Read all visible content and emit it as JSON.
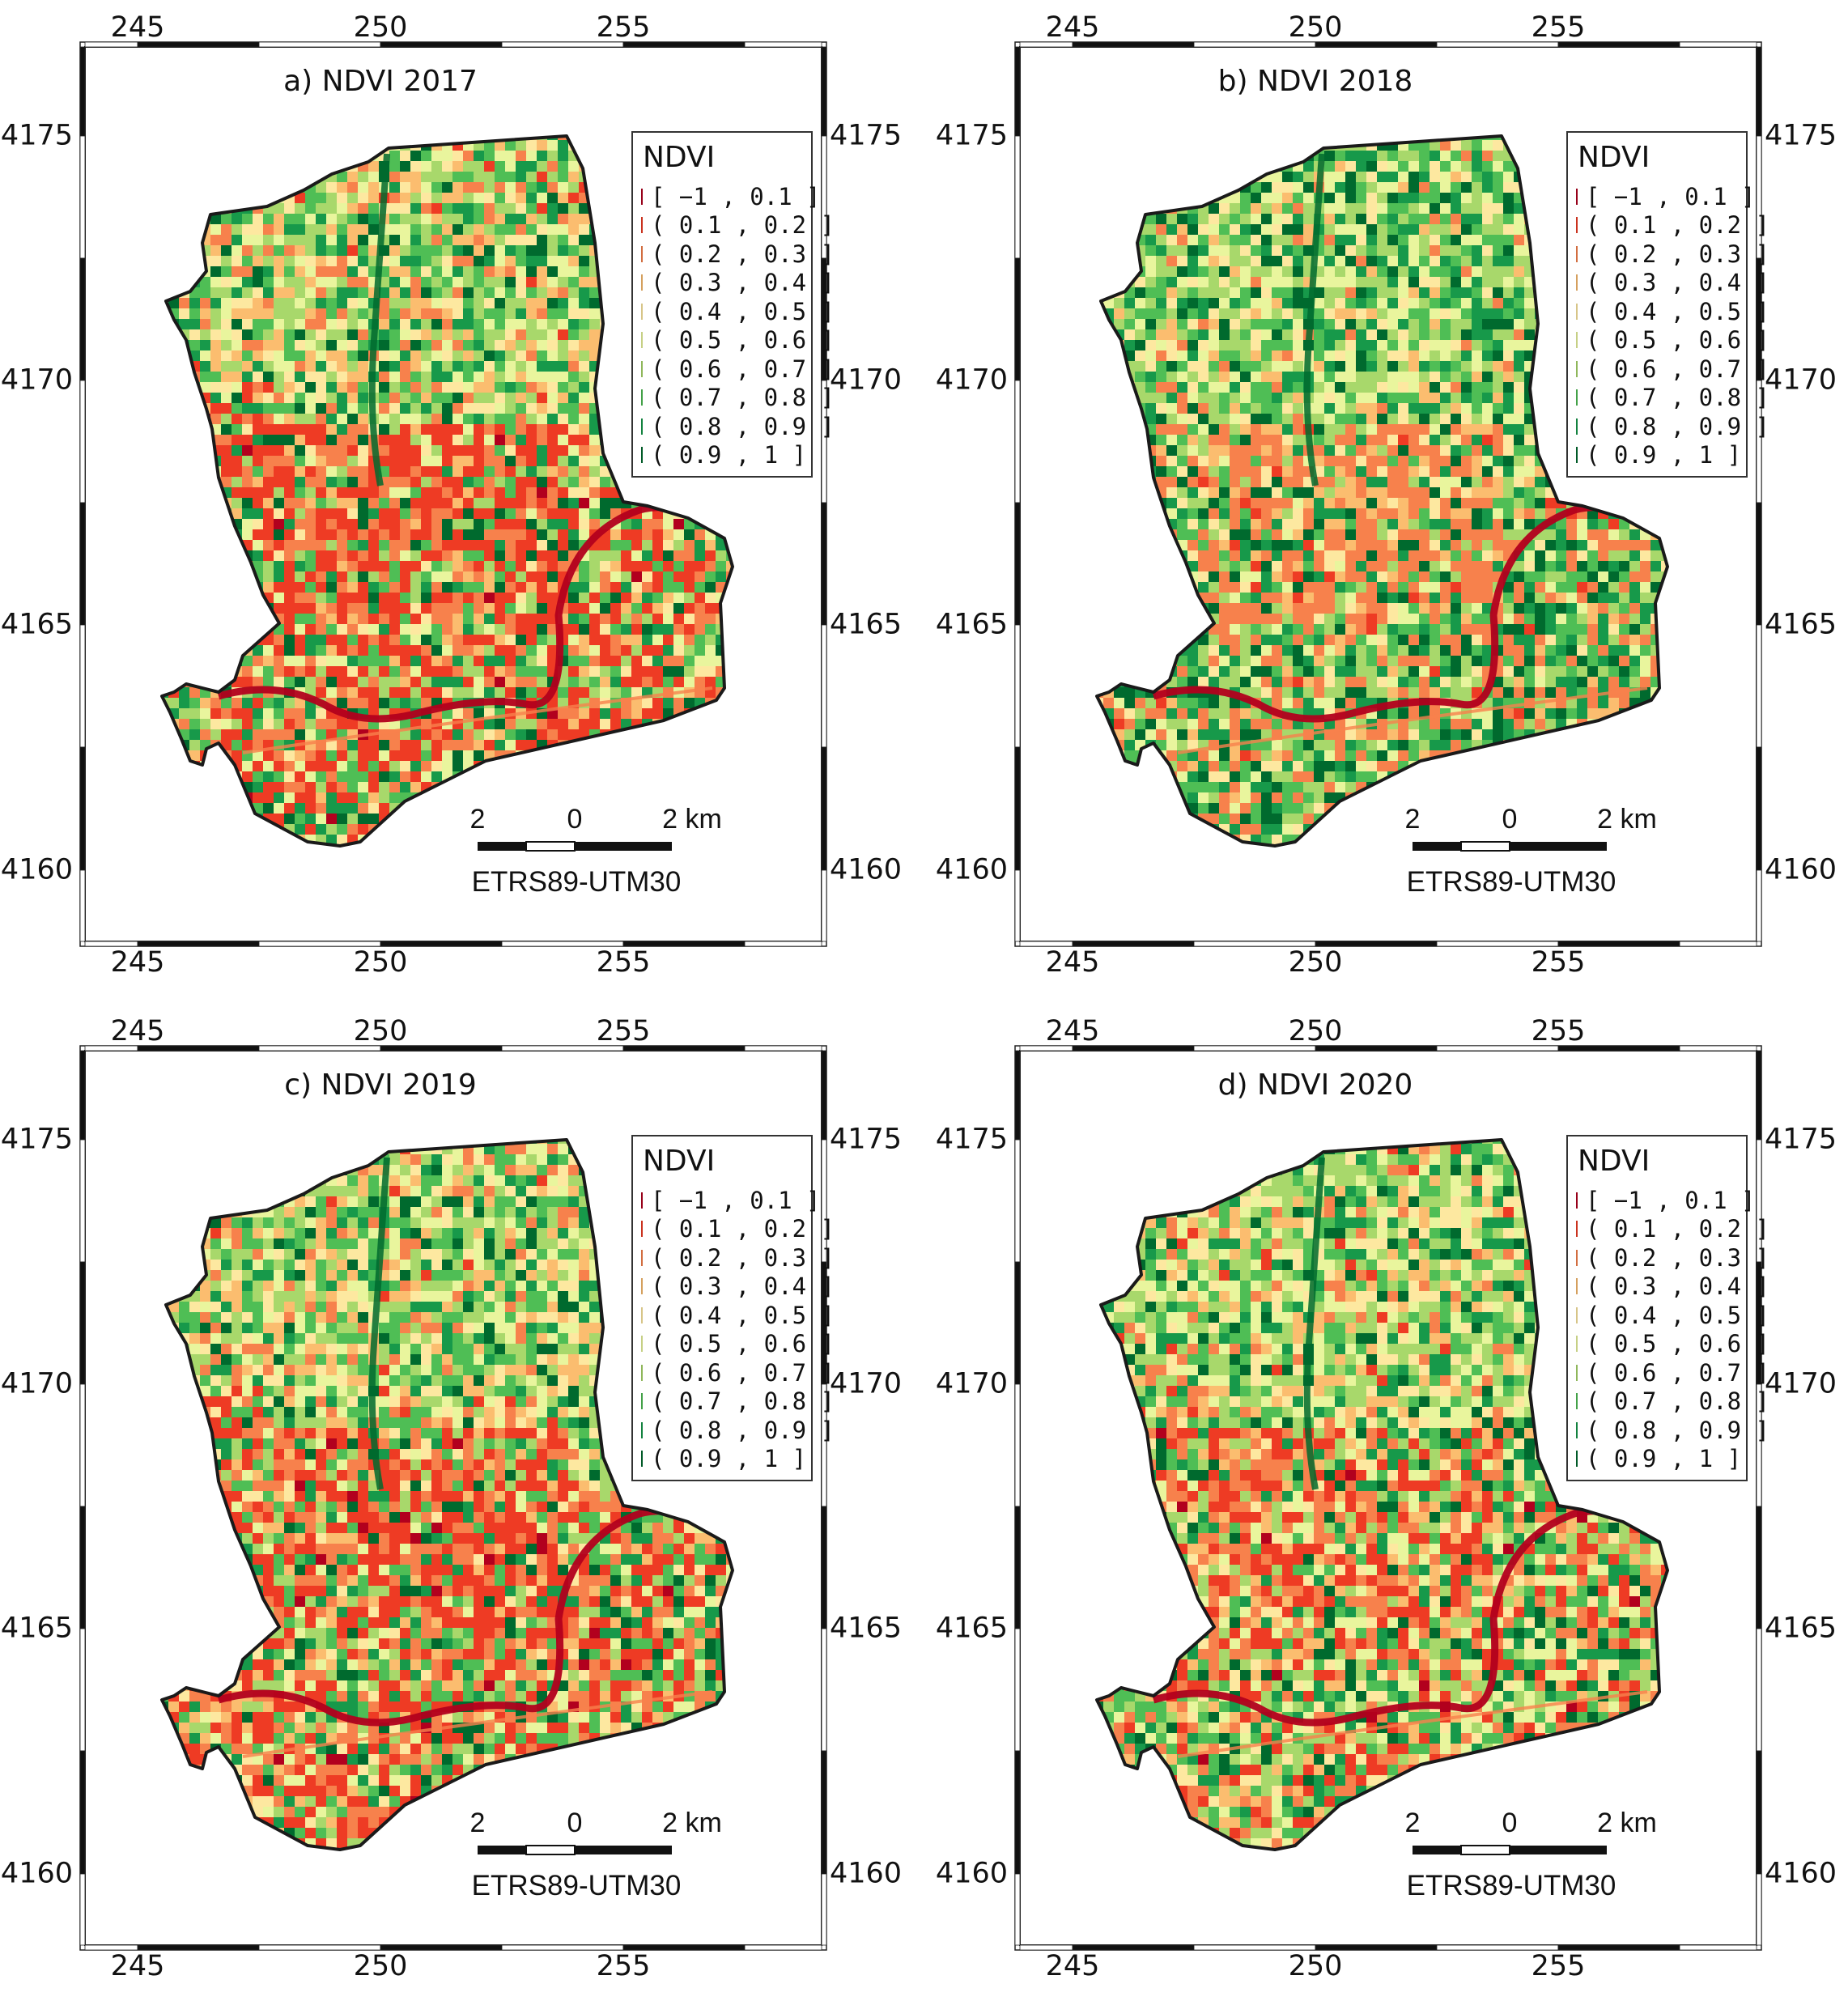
{
  "figure": {
    "panels": [
      {
        "title": "a) NDVI 2017",
        "scheme": "dry"
      },
      {
        "title": "b) NDVI 2018",
        "scheme": "wet"
      },
      {
        "title": "c) NDVI 2019",
        "scheme": "dry"
      },
      {
        "title": "d) NDVI 2020",
        "scheme": "mixed"
      }
    ],
    "x_ticks": [
      "245",
      "250",
      "255"
    ],
    "y_ticks": [
      "4175",
      "4170",
      "4165",
      "4160"
    ],
    "legend": {
      "title": "NDVI",
      "classes": [
        {
          "label": "[ −1 , 0.1 ]",
          "color": "#b2001e"
        },
        {
          "label": "( 0.1 , 0.2 ]",
          "color": "#ee3b24"
        },
        {
          "label": "( 0.2 , 0.3 ]",
          "color": "#f7814c"
        },
        {
          "label": "( 0.3 , 0.4 ]",
          "color": "#fbbd6f"
        },
        {
          "label": "( 0.4 , 0.5 ]",
          "color": "#fde8a0"
        },
        {
          "label": "( 0.5 , 0.6 ]",
          "color": "#e9f59d"
        },
        {
          "label": "( 0.6 , 0.7 ]",
          "color": "#a8d86b"
        },
        {
          "label": "( 0.7 , 0.8 ]",
          "color": "#4fbe55"
        },
        {
          "label": "( 0.8 , 0.9 ]",
          "color": "#17994a"
        },
        {
          "label": "( 0.9 , 1 ]",
          "color": "#006a2e"
        }
      ]
    },
    "scale_bar": {
      "labels": [
        "2",
        "0",
        "2 km"
      ]
    },
    "crs": "ETRS89-UTM30"
  }
}
